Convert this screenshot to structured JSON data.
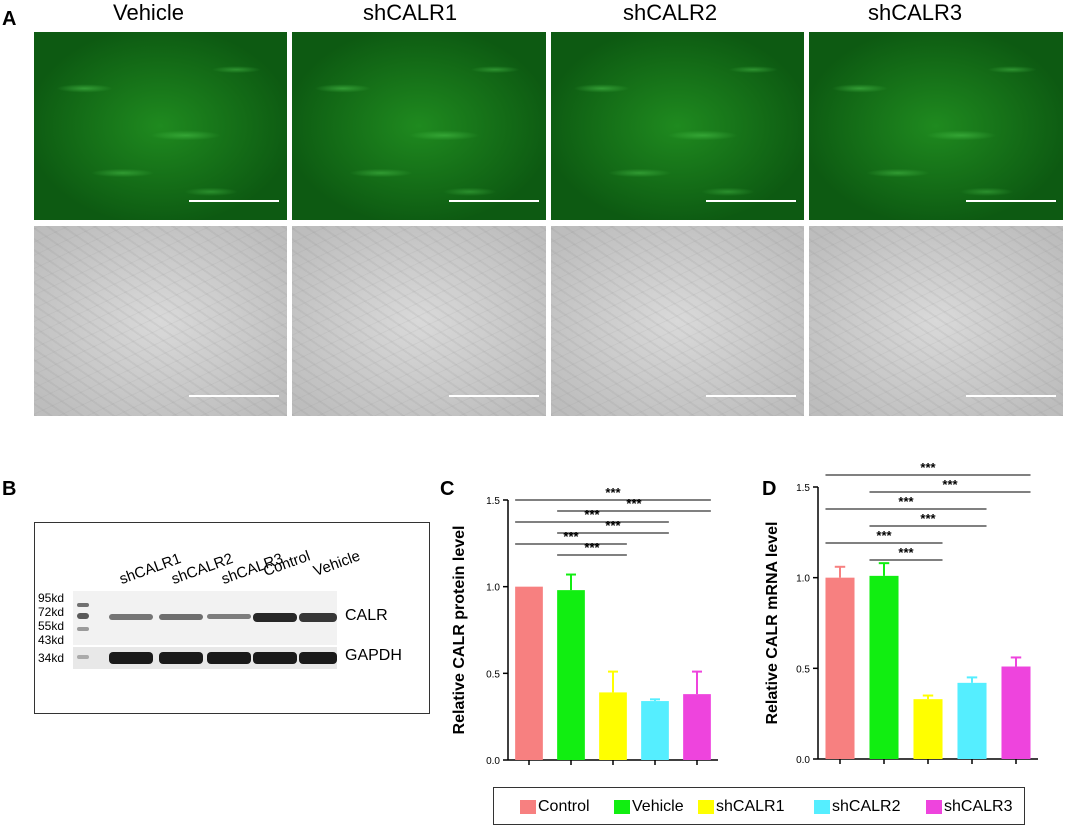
{
  "panel_labels": {
    "a": "A",
    "b": "B",
    "c": "C",
    "d": "D"
  },
  "panel_a": {
    "columns": [
      "Vehicle",
      "shCALR1",
      "shCALR2",
      "shCALR3"
    ]
  },
  "panel_b": {
    "lane_labels": [
      "shCALR1",
      "shCALR2",
      "shCALR3",
      "Control",
      "Vehicle"
    ],
    "marker_labels": [
      "95kd",
      "72kd",
      "55kd",
      "43kd",
      "34kd"
    ],
    "band_labels": [
      "CALR",
      "GAPDH"
    ],
    "calr_band_intensity": [
      0.35,
      0.4,
      0.3,
      0.9,
      0.8
    ]
  },
  "colors": {
    "Control": "#f78080",
    "Vehicle": "#11ee11",
    "shCALR1": "#ffff00",
    "shCALR2": "#55eeff",
    "shCALR3": "#ee44dd"
  },
  "legend": {
    "items": [
      "Control",
      "Vehicle",
      "shCALR1",
      "shCALR2",
      "shCALR3"
    ]
  },
  "chart_data": [
    {
      "type": "bar",
      "panel": "C",
      "ylabel": "Relative CALR protein level",
      "categories": [
        "Control",
        "Vehicle",
        "shCALR1",
        "shCALR2",
        "shCALR3"
      ],
      "values": [
        1.0,
        0.98,
        0.39,
        0.34,
        0.38
      ],
      "errors": [
        0.0,
        0.09,
        0.12,
        0.01,
        0.13
      ],
      "ylim": [
        0,
        1.5
      ],
      "yticks": [
        "0.0",
        "0.5",
        "1.0",
        "1.5"
      ],
      "significance": [
        {
          "from": 0,
          "to": 2,
          "label": "***"
        },
        {
          "from": 1,
          "to": 2,
          "label": "***"
        },
        {
          "from": 0,
          "to": 3,
          "label": "***"
        },
        {
          "from": 1,
          "to": 3,
          "label": "***"
        },
        {
          "from": 0,
          "to": 4,
          "label": "***"
        },
        {
          "from": 1,
          "to": 4,
          "label": "***"
        }
      ]
    },
    {
      "type": "bar",
      "panel": "D",
      "ylabel": "Relative CALR mRNA level",
      "categories": [
        "Control",
        "Vehicle",
        "shCALR1",
        "shCALR2",
        "shCALR3"
      ],
      "values": [
        1.0,
        1.01,
        0.33,
        0.42,
        0.51
      ],
      "errors": [
        0.06,
        0.07,
        0.02,
        0.03,
        0.05
      ],
      "ylim": [
        0,
        1.5
      ],
      "yticks": [
        "0.0",
        "0.5",
        "1.0",
        "1.5"
      ],
      "significance": [
        {
          "from": 0,
          "to": 2,
          "label": "***"
        },
        {
          "from": 1,
          "to": 2,
          "label": "***"
        },
        {
          "from": 0,
          "to": 3,
          "label": "***"
        },
        {
          "from": 1,
          "to": 3,
          "label": "***"
        },
        {
          "from": 0,
          "to": 4,
          "label": "***"
        },
        {
          "from": 1,
          "to": 4,
          "label": "***"
        }
      ]
    }
  ]
}
